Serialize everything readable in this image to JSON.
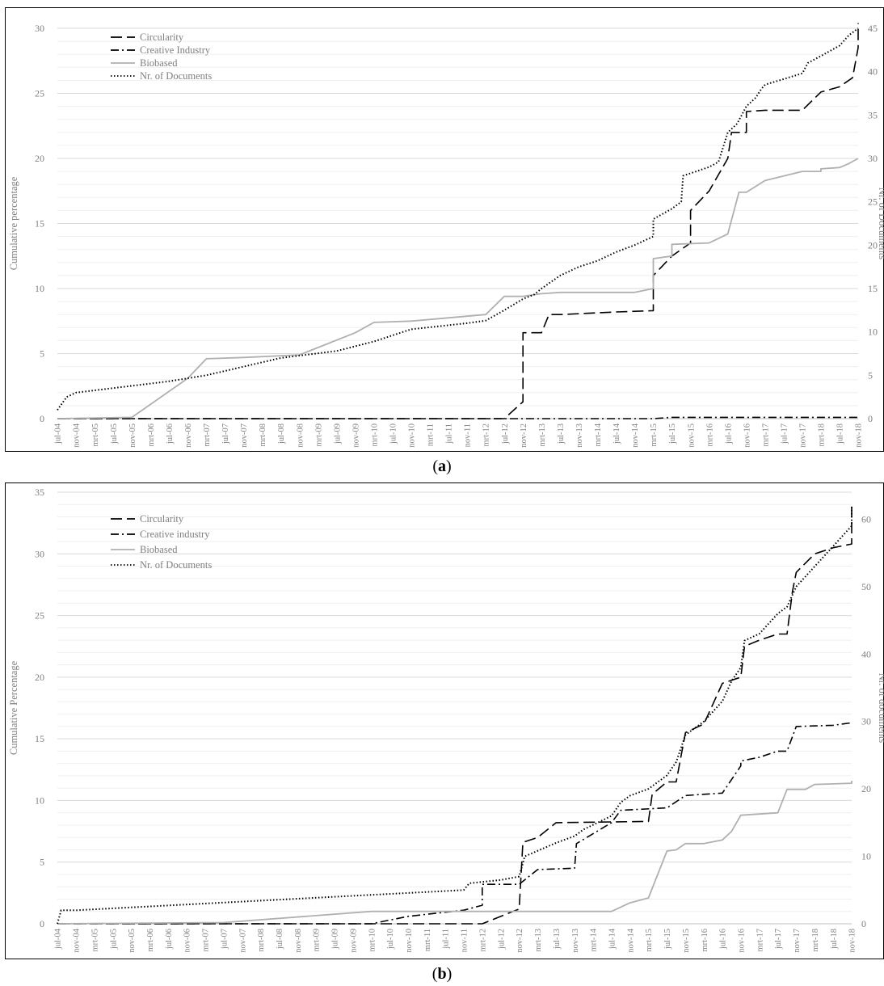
{
  "captions": {
    "a": "a",
    "b": "b"
  },
  "chart_data": [
    {
      "type": "line",
      "panel": "a",
      "x": [
        "jul-04",
        "nov-04",
        "mrt-05",
        "jul-05",
        "nov-05",
        "mrt-06",
        "jul-06",
        "nov-06",
        "mrt-07",
        "jul-07",
        "nov-07",
        "mrt-08",
        "jul-08",
        "nov-08",
        "mrt-09",
        "jul-09",
        "nov-09",
        "mrt-10",
        "jul-10",
        "nov-10",
        "mrt-11",
        "jul-11",
        "nov-11",
        "mrt-12",
        "jul-12",
        "nov-12",
        "mrt-13",
        "jul-13",
        "nov-13",
        "mrt-14",
        "jul-14",
        "nov-14",
        "mrt-15",
        "jul-15",
        "nov-15",
        "mrt-16",
        "jul-16",
        "nov-16",
        "mrt-17",
        "jul-17",
        "nov-17",
        "mrt-18",
        "jul-18",
        "nov-18"
      ],
      "ylabel": "Cumulative percentage",
      "y2label": "Nr. of Documents",
      "ylim": [
        0,
        30
      ],
      "y2lim": [
        0,
        45
      ],
      "yticks": [
        0,
        5,
        10,
        15,
        20,
        25,
        30
      ],
      "y2ticks": [
        0,
        5,
        10,
        15,
        20,
        25,
        30,
        35,
        40,
        45
      ],
      "grid": true,
      "legend_position": "top-left",
      "series": [
        {
          "name": "Circularity",
          "axis": "left",
          "style": "dash",
          "color": "#000000",
          "points": [
            [
              0,
              0
            ],
            [
              24,
              0
            ],
            [
              25,
              1.3
            ],
            [
              25,
              6.6
            ],
            [
              26,
              6.6
            ],
            [
              26.4,
              8
            ],
            [
              27,
              8
            ],
            [
              30,
              8.2
            ],
            [
              32,
              8.3
            ],
            [
              32,
              11
            ],
            [
              33,
              12.5
            ],
            [
              34,
              13.5
            ],
            [
              34,
              16
            ],
            [
              35,
              17.5
            ],
            [
              36,
              20
            ],
            [
              36.2,
              22
            ],
            [
              37,
              22
            ],
            [
              37,
              23.6
            ],
            [
              38,
              23.7
            ],
            [
              40,
              23.7
            ],
            [
              41,
              25.1
            ],
            [
              42,
              25.5
            ],
            [
              42.7,
              26.2
            ],
            [
              43,
              28.5
            ],
            [
              43,
              30.4
            ]
          ]
        },
        {
          "name": "Creative Industry",
          "axis": "left",
          "style": "dashdot",
          "color": "#000000",
          "points": [
            [
              0,
              0
            ],
            [
              32,
              0
            ],
            [
              33,
              0.1
            ],
            [
              43,
              0.1
            ]
          ]
        },
        {
          "name": "Biobased",
          "axis": "left",
          "style": "solid",
          "color": "#b0b0b0",
          "points": [
            [
              0,
              0
            ],
            [
              4,
              0.1
            ],
            [
              7,
              3.1
            ],
            [
              8,
              4.6
            ],
            [
              10,
              4.7
            ],
            [
              13,
              4.9
            ],
            [
              16,
              6.6
            ],
            [
              17,
              7.4
            ],
            [
              19,
              7.5
            ],
            [
              23,
              8
            ],
            [
              24,
              9.4
            ],
            [
              25,
              9.4
            ],
            [
              26,
              9.6
            ],
            [
              27,
              9.7
            ],
            [
              31,
              9.7
            ],
            [
              32,
              10
            ],
            [
              32,
              12.3
            ],
            [
              33,
              12.5
            ],
            [
              33,
              13.4
            ],
            [
              35,
              13.5
            ],
            [
              36,
              14.2
            ],
            [
              36.6,
              17.4
            ],
            [
              37,
              17.4
            ],
            [
              38,
              18.3
            ],
            [
              40,
              19
            ],
            [
              41,
              19
            ],
            [
              41,
              19.2
            ],
            [
              42,
              19.3
            ],
            [
              42.5,
              19.6
            ],
            [
              43,
              20
            ]
          ]
        },
        {
          "name": "Nr. of Documents",
          "axis": "right",
          "style": "dot",
          "color": "#000000",
          "points": [
            [
              0,
              1
            ],
            [
              0.5,
              2.5
            ],
            [
              1,
              3
            ],
            [
              6,
              4.3
            ],
            [
              8,
              5
            ],
            [
              9,
              5.5
            ],
            [
              10,
              6
            ],
            [
              12,
              7
            ],
            [
              15,
              7.8
            ],
            [
              17,
              8.9
            ],
            [
              19,
              10.3
            ],
            [
              22,
              11
            ],
            [
              23,
              11.3
            ],
            [
              24,
              12.5
            ],
            [
              25,
              13.8
            ],
            [
              25.6,
              14.3
            ],
            [
              26,
              15
            ],
            [
              27,
              16.5
            ],
            [
              28,
              17.5
            ],
            [
              29,
              18.2
            ],
            [
              30,
              19.2
            ],
            [
              31,
              20
            ],
            [
              32,
              21
            ],
            [
              32,
              23
            ],
            [
              33,
              24.2
            ],
            [
              33.5,
              25
            ],
            [
              33.6,
              28
            ],
            [
              35,
              29
            ],
            [
              35.5,
              29.6
            ],
            [
              36,
              33
            ],
            [
              36.5,
              34
            ],
            [
              37,
              36
            ],
            [
              37.5,
              37
            ],
            [
              37.8,
              38
            ],
            [
              38,
              38.5
            ],
            [
              40,
              39.8
            ],
            [
              40.3,
              41
            ],
            [
              41,
              41.8
            ],
            [
              42,
              43
            ],
            [
              42.5,
              44.2
            ],
            [
              43,
              45
            ]
          ]
        }
      ],
      "legend": [
        "Circularity",
        "Creative Industry",
        "Biobased",
        "Nr. of Documents"
      ]
    },
    {
      "type": "line",
      "panel": "b",
      "x": [
        "jul-04",
        "nov-04",
        "mrt-05",
        "jul-05",
        "nov-05",
        "mrt-06",
        "jul-06",
        "nov-06",
        "mrt-07",
        "jul-07",
        "nov-07",
        "mrt-08",
        "jul-08",
        "nov-08",
        "mrt-09",
        "jul-09",
        "nov-09",
        "mrt-10",
        "jul-10",
        "nov-10",
        "mrt-11",
        "jul-11",
        "nov-11",
        "mrt-12",
        "jul-12",
        "nov-12",
        "mrt-13",
        "jul-13",
        "nov-13",
        "mrt-14",
        "jul-14",
        "nov-14",
        "mrt-15",
        "jul-15",
        "nov-15",
        "mrt-16",
        "jul-16",
        "nov-16",
        "mrt-17",
        "jul-17",
        "nov-17",
        "mrt-18",
        "jul-18",
        "nov-18"
      ],
      "ylabel": "Cumulative Percentage",
      "y2label": "Nr. of documents",
      "ylim": [
        0,
        35
      ],
      "y2lim": [
        0,
        64
      ],
      "yticks": [
        0,
        5,
        10,
        15,
        20,
        25,
        30,
        35
      ],
      "y2ticks": [
        0,
        10,
        20,
        30,
        40,
        50,
        60
      ],
      "grid": true,
      "legend_position": "top-left",
      "series": [
        {
          "name": "Circularity",
          "axis": "left",
          "style": "dash",
          "color": "#000000",
          "points": [
            [
              0,
              0
            ],
            [
              23,
              0
            ],
            [
              25,
              1.2
            ],
            [
              25.2,
              6.6
            ],
            [
              26,
              7
            ],
            [
              27,
              8.2
            ],
            [
              32,
              8.3
            ],
            [
              32.2,
              10.5
            ],
            [
              33,
              11.5
            ],
            [
              33.5,
              11.5
            ],
            [
              34,
              15.5
            ],
            [
              35,
              16.2
            ],
            [
              36,
              19.5
            ],
            [
              37,
              20
            ],
            [
              37.2,
              22.5
            ],
            [
              38,
              23
            ],
            [
              39,
              23.5
            ],
            [
              39.5,
              23.5
            ],
            [
              39.8,
              27
            ],
            [
              40,
              28.5
            ],
            [
              41,
              30
            ],
            [
              42,
              30.5
            ],
            [
              43,
              30.8
            ],
            [
              43,
              33.8
            ]
          ]
        },
        {
          "name": "Creative industry",
          "axis": "left",
          "style": "dashdot",
          "color": "#000000",
          "points": [
            [
              0,
              0
            ],
            [
              17,
              0
            ],
            [
              19,
              0.6
            ],
            [
              22,
              1.1
            ],
            [
              23,
              1.5
            ],
            [
              23,
              3.2
            ],
            [
              25,
              3.2
            ],
            [
              26,
              4.4
            ],
            [
              28,
              4.5
            ],
            [
              28.1,
              6.5
            ],
            [
              29,
              7.3
            ],
            [
              30,
              8.2
            ],
            [
              30.5,
              9.2
            ],
            [
              33,
              9.4
            ],
            [
              34,
              10.4
            ],
            [
              36,
              10.6
            ],
            [
              37,
              12.8
            ],
            [
              37,
              13.2
            ],
            [
              38,
              13.5
            ],
            [
              39,
              14
            ],
            [
              39.5,
              14
            ],
            [
              40,
              16
            ],
            [
              42,
              16.1
            ],
            [
              43,
              16.3
            ]
          ]
        },
        {
          "name": "Biobased",
          "axis": "left",
          "style": "solid",
          "color": "#b0b0b0",
          "points": [
            [
              0,
              0
            ],
            [
              9,
              0.1
            ],
            [
              17,
              1
            ],
            [
              20,
              1
            ],
            [
              30,
              1
            ],
            [
              31,
              1.7
            ],
            [
              32,
              2.1
            ],
            [
              33,
              5.9
            ],
            [
              33.5,
              6
            ],
            [
              34,
              6.5
            ],
            [
              35,
              6.5
            ],
            [
              36,
              6.8
            ],
            [
              36.5,
              7.5
            ],
            [
              37,
              8.8
            ],
            [
              38,
              8.9
            ],
            [
              39,
              9
            ],
            [
              39.5,
              10.9
            ],
            [
              40.5,
              10.9
            ],
            [
              41,
              11.3
            ],
            [
              43,
              11.4
            ],
            [
              43,
              11.6
            ]
          ]
        },
        {
          "name": "Nr. of Documents",
          "axis": "right",
          "style": "dot",
          "color": "#000000",
          "points": [
            [
              0,
              0
            ],
            [
              0.2,
              2
            ],
            [
              1,
              2
            ],
            [
              22,
              5
            ],
            [
              22.3,
              6
            ],
            [
              24,
              6.5
            ],
            [
              25,
              7
            ],
            [
              25.3,
              10
            ],
            [
              27,
              12
            ],
            [
              28,
              13
            ],
            [
              28.5,
              14
            ],
            [
              30,
              16
            ],
            [
              30.5,
              18
            ],
            [
              31,
              19
            ],
            [
              32,
              20
            ],
            [
              33,
              22
            ],
            [
              33.5,
              24
            ],
            [
              34,
              28
            ],
            [
              35,
              30
            ],
            [
              36,
              33
            ],
            [
              36.5,
              36
            ],
            [
              37,
              38
            ],
            [
              37.2,
              42
            ],
            [
              38,
              43
            ],
            [
              39,
              46
            ],
            [
              39.5,
              47
            ],
            [
              40,
              50
            ],
            [
              41,
              53
            ],
            [
              42,
              56
            ],
            [
              43,
              59
            ],
            [
              43,
              62
            ]
          ]
        }
      ],
      "legend": [
        "Circularity",
        "Creative industry",
        "Biobased",
        "Nr. of Documents"
      ]
    }
  ]
}
